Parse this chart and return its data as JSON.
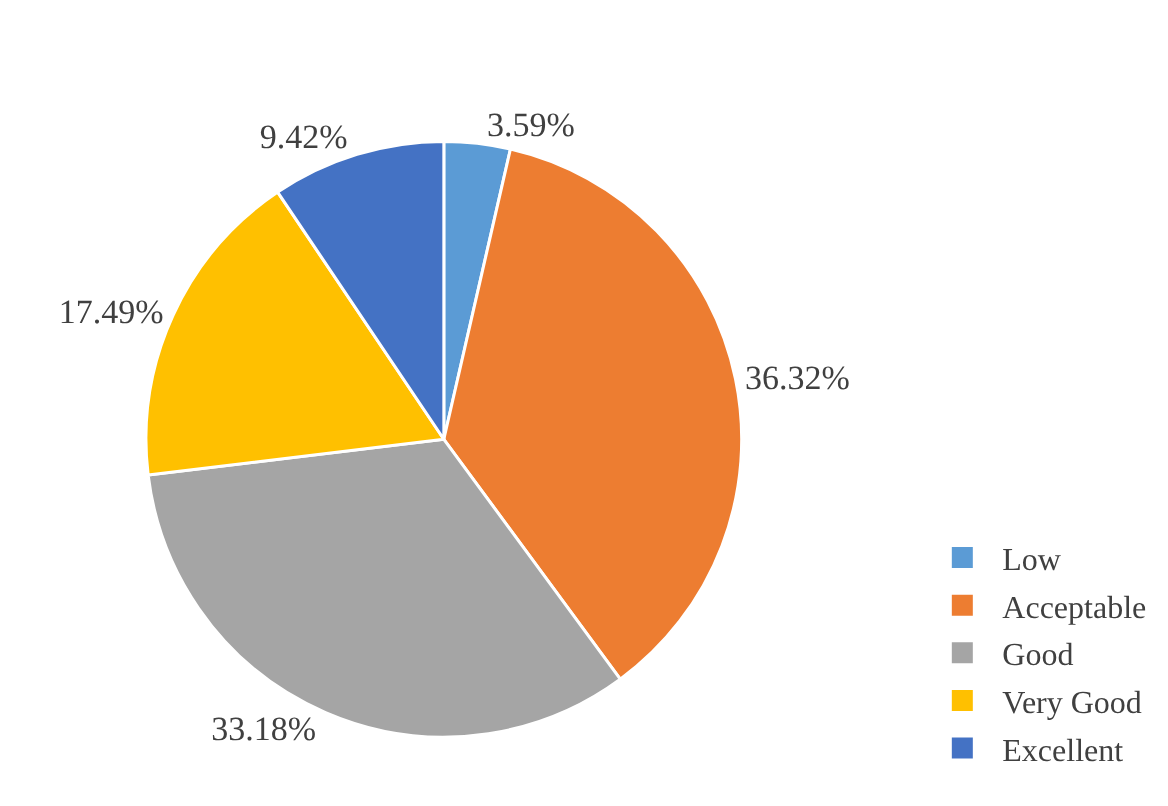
{
  "chart_data": {
    "type": "pie",
    "categories": [
      "Low",
      "Acceptable",
      "Good",
      "Very Good",
      "Excellent"
    ],
    "values": [
      3.59,
      36.32,
      33.18,
      17.49,
      9.42
    ],
    "value_labels": [
      "3.59%",
      "36.32%",
      "33.18%",
      "17.49%",
      "9.42%"
    ],
    "colors": [
      "#5b9bd5",
      "#ed7d31",
      "#a5a5a5",
      "#ffc000",
      "#4472c4"
    ],
    "legend": "bottom right"
  }
}
